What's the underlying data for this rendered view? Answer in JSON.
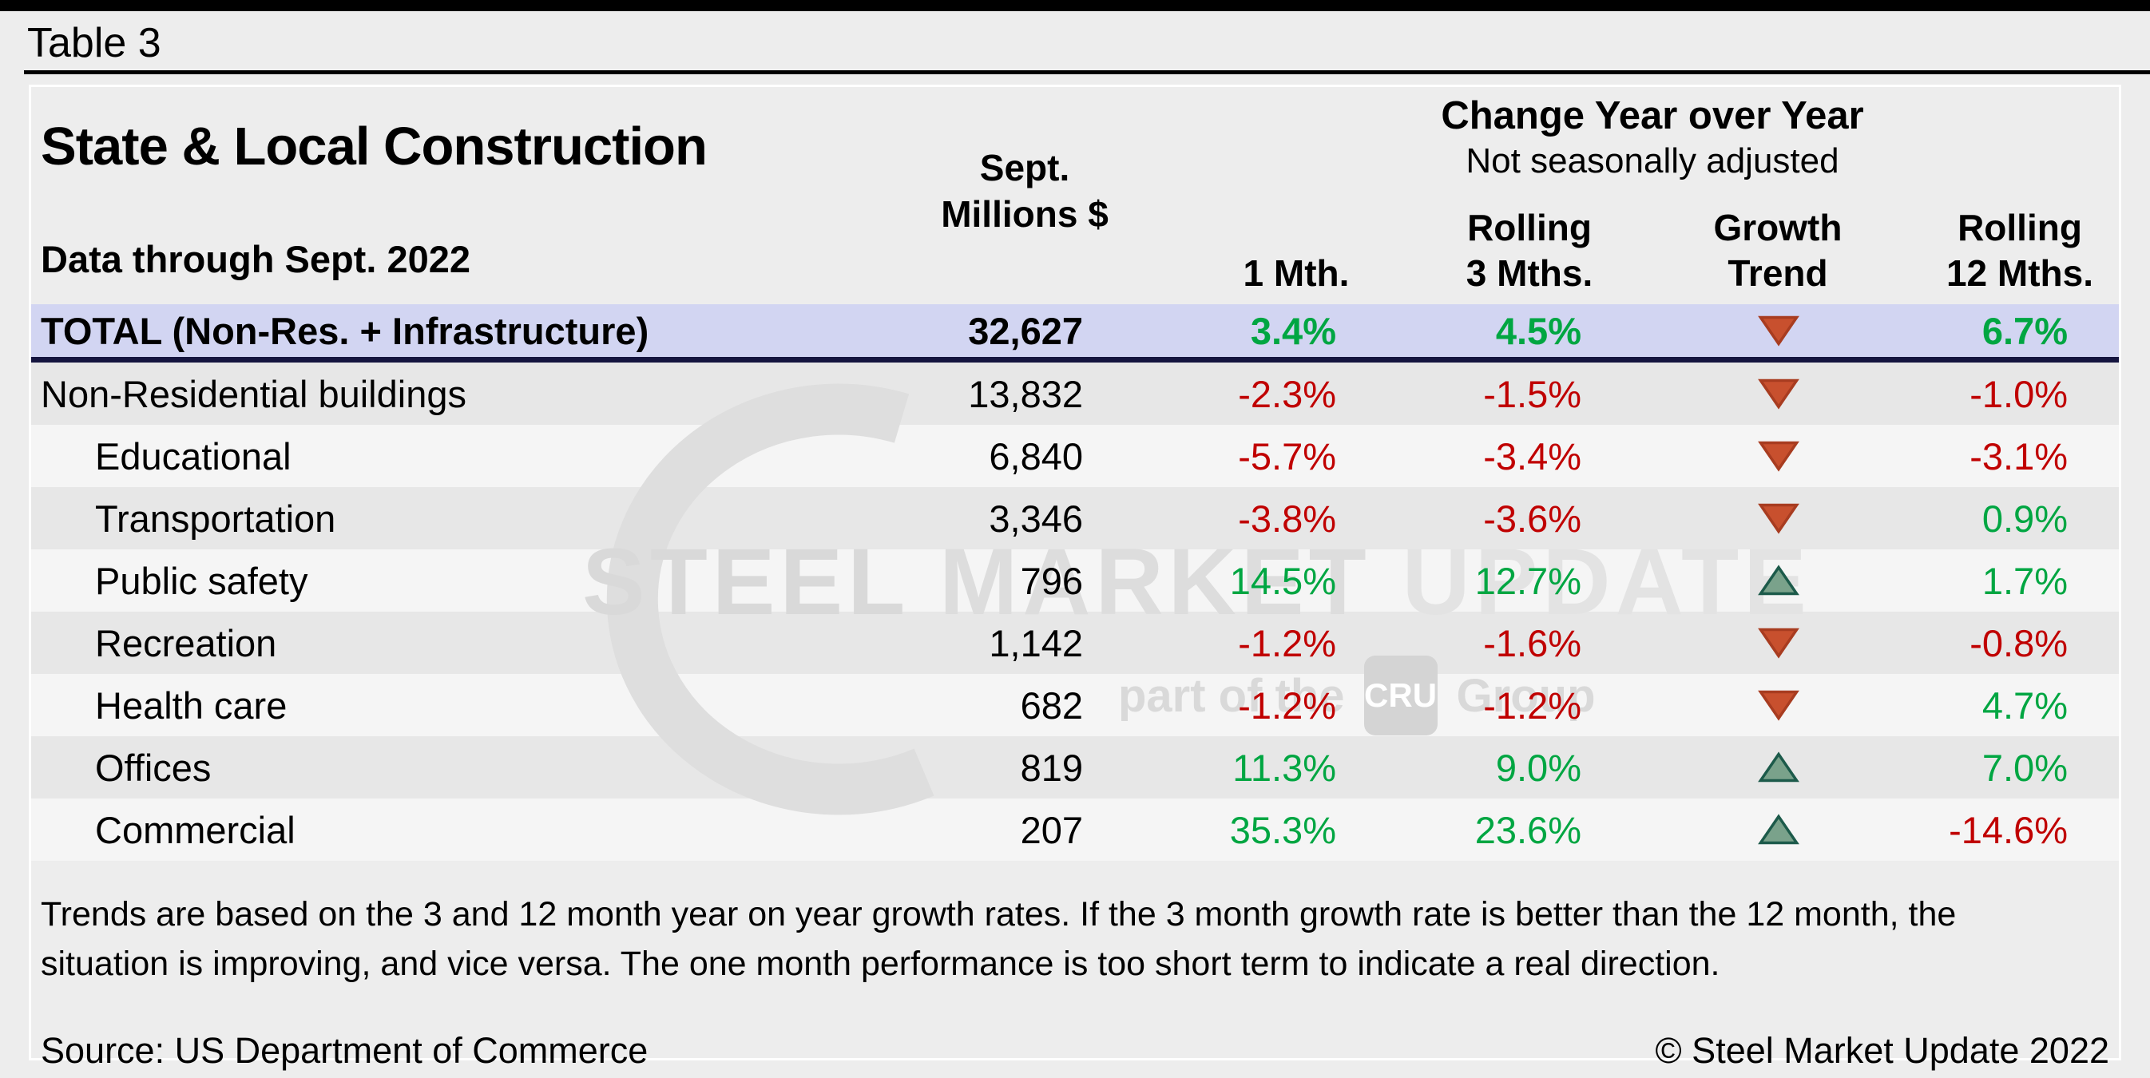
{
  "page": {
    "table_label": "Table 3"
  },
  "header": {
    "title": "State & Local Construction",
    "subtitle": "Data through Sept. 2022",
    "millions_line1": "Sept.",
    "millions_line2": "Millions $",
    "group_title": "Change Year over Year",
    "group_subtitle": "Not seasonally adjusted",
    "col_1mth": "1 Mth.",
    "col_roll3_line1": "Rolling",
    "col_roll3_line2": "3 Mths.",
    "col_trend_line1": "Growth",
    "col_trend_line2": "Trend",
    "col_roll12_line1": "Rolling",
    "col_roll12_line2": "12 Mths."
  },
  "chart_data": {
    "type": "table",
    "title": "State & Local Construction",
    "subtitle": "Data through Sept. 2022",
    "columns": [
      "Category",
      "Sept. Millions $",
      "1 Mth.",
      "Rolling 3 Mths.",
      "Growth Trend",
      "Rolling 12 Mths."
    ],
    "change_group_label": "Change Year over Year",
    "change_group_note": "Not seasonally adjusted",
    "rows": [
      {
        "label": "TOTAL (Non-Res. + Infrastructure)",
        "total": true,
        "indent": false,
        "millions": "32,627",
        "m1": "3.4%",
        "m1_color": "green",
        "r3": "4.5%",
        "r3_color": "green",
        "trend": "down",
        "r12": "6.7%",
        "r12_color": "green"
      },
      {
        "label": "Non-Residential buildings",
        "total": false,
        "indent": false,
        "millions": "13,832",
        "m1": "-2.3%",
        "m1_color": "red",
        "r3": "-1.5%",
        "r3_color": "red",
        "trend": "down",
        "r12": "-1.0%",
        "r12_color": "red"
      },
      {
        "label": "Educational",
        "total": false,
        "indent": true,
        "millions": "6,840",
        "m1": "-5.7%",
        "m1_color": "red",
        "r3": "-3.4%",
        "r3_color": "red",
        "trend": "down",
        "r12": "-3.1%",
        "r12_color": "red"
      },
      {
        "label": "Transportation",
        "total": false,
        "indent": true,
        "millions": "3,346",
        "m1": "-3.8%",
        "m1_color": "red",
        "r3": "-3.6%",
        "r3_color": "red",
        "trend": "down",
        "r12": "0.9%",
        "r12_color": "green"
      },
      {
        "label": "Public safety",
        "total": false,
        "indent": true,
        "millions": "796",
        "m1": "14.5%",
        "m1_color": "green",
        "r3": "12.7%",
        "r3_color": "green",
        "trend": "up",
        "r12": "1.7%",
        "r12_color": "green"
      },
      {
        "label": "Recreation",
        "total": false,
        "indent": true,
        "millions": "1,142",
        "m1": "-1.2%",
        "m1_color": "red",
        "r3": "-1.6%",
        "r3_color": "red",
        "trend": "down",
        "r12": "-0.8%",
        "r12_color": "red"
      },
      {
        "label": "Health care",
        "total": false,
        "indent": true,
        "millions": "682",
        "m1": "-1.2%",
        "m1_color": "red",
        "r3": "-1.2%",
        "r3_color": "red",
        "trend": "down",
        "r12": "4.7%",
        "r12_color": "green"
      },
      {
        "label": "Offices",
        "total": false,
        "indent": true,
        "millions": "819",
        "m1": "11.3%",
        "m1_color": "green",
        "r3": "9.0%",
        "r3_color": "green",
        "trend": "up",
        "r12": "7.0%",
        "r12_color": "green"
      },
      {
        "label": "Commercial",
        "total": false,
        "indent": true,
        "millions": "207",
        "m1": "35.3%",
        "m1_color": "green",
        "r3": "23.6%",
        "r3_color": "green",
        "trend": "up",
        "r12": "-14.6%",
        "r12_color": "red"
      }
    ]
  },
  "footer": {
    "note": "Trends are based on the 3 and 12 month year on year growth rates. If the 3 month growth rate is better than the 12 month, the situation is improving, and vice versa. The one month performance is too short term to indicate a real direction.",
    "source": "Source: US Department of Commerce",
    "copyright": "© Steel Market Update 2022"
  },
  "watermark": {
    "word1": "STEEL",
    "word2": "MARKET",
    "word3": "UPDATE",
    "part_of_the": "part of the",
    "cru": "CRU",
    "group": "Group"
  },
  "colors": {
    "page_bg": "#EDEDED",
    "panel_bg": "#EDEDED",
    "topbar": "#000000",
    "green": "#00A642",
    "red": "#C00000",
    "total_row_bg": "#D2D5F2",
    "total_border": "#15153F",
    "stripe_dark": "#E7E7E7",
    "stripe_light": "#F5F5F5",
    "arrow_down_fill": "#C8502E",
    "arrow_down_edge": "#A83C20",
    "arrow_up_fill": "#7AA28B",
    "arrow_up_edge": "#1C5A4A",
    "watermark": "#D9D9D9"
  }
}
